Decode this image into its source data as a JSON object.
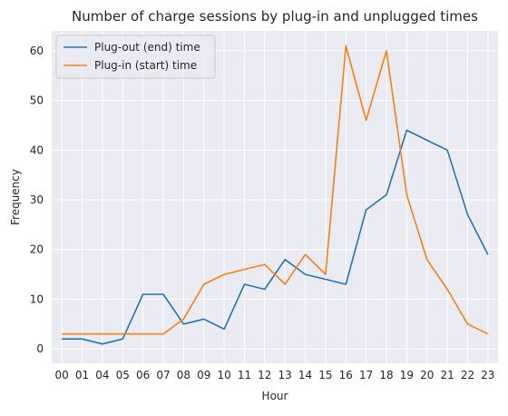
{
  "chart_data": {
    "type": "line",
    "title": "Number of charge sessions by plug-in and unplugged times",
    "xlabel": "Hour",
    "ylabel": "Frequency",
    "categories": [
      "00",
      "01",
      "04",
      "05",
      "06",
      "07",
      "08",
      "09",
      "10",
      "11",
      "12",
      "13",
      "14",
      "15",
      "16",
      "17",
      "18",
      "19",
      "20",
      "21",
      "22",
      "23"
    ],
    "ylim": [
      -2.9,
      64
    ],
    "yticks": [
      0,
      10,
      20,
      30,
      40,
      50,
      60
    ],
    "grid": true,
    "legend_position": "top-left",
    "series": [
      {
        "name": "Plug-out (end) time",
        "color": "#1f77b4",
        "values": [
          2,
          2,
          1,
          2,
          11,
          11,
          5,
          6,
          4,
          13,
          12,
          18,
          15,
          14,
          13,
          28,
          31,
          44,
          42,
          40,
          27,
          19
        ]
      },
      {
        "name": "Plug-in (start) time",
        "color": "#ff7f0e",
        "values": [
          3,
          3,
          3,
          3,
          3,
          3,
          6,
          13,
          15,
          16,
          17,
          13,
          19,
          15,
          61,
          46,
          60,
          31,
          18,
          12,
          5,
          3
        ]
      }
    ],
    "background_color": "#eaeaf2",
    "grid_color": "#ffffff"
  }
}
